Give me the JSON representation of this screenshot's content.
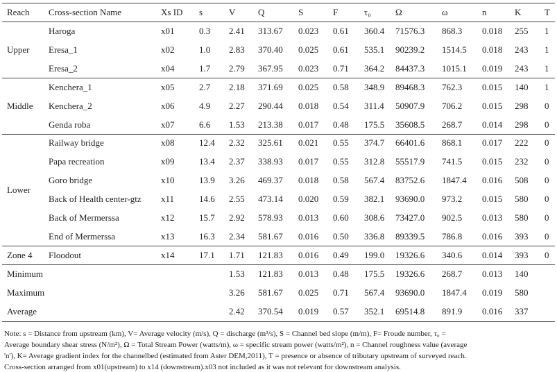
{
  "table": {
    "header": [
      "Reach",
      "Cross-section Name",
      "Xs ID",
      "s",
      "V",
      "Q",
      "S",
      "F",
      "τ₀",
      "Ω",
      "ω",
      "n",
      "K",
      "T"
    ],
    "groups": [
      {
        "reach": "Upper",
        "rows": [
          [
            "Haroga",
            "x01",
            "0.3",
            "2.41",
            "313.67",
            "0.023",
            "0.61",
            "360.4",
            "71576.3",
            "868.3",
            "0.018",
            "255",
            "1"
          ],
          [
            "Eresa_1",
            "x02",
            "1.0",
            "2.83",
            "370.40",
            "0.025",
            "0.61",
            "535.1",
            "90239.2",
            "1514.5",
            "0.018",
            "243",
            "1"
          ],
          [
            "Eresa_2",
            "x04",
            "1.7",
            "2.79",
            "367.95",
            "0.023",
            "0.71",
            "364.2",
            "84437.3",
            "1015.1",
            "0.019",
            "243",
            "1"
          ]
        ]
      },
      {
        "reach": "Middle",
        "rows": [
          [
            "Kenchera_1",
            "x05",
            "2.7",
            "2.18",
            "371.69",
            "0.025",
            "0.58",
            "348.9",
            "89468.3",
            "762.3",
            "0.015",
            "140",
            "1"
          ],
          [
            "Kenchera_2",
            "x06",
            "4.9",
            "2.27",
            "290.44",
            "0.018",
            "0.54",
            "311.4",
            "50907.9",
            "706.2",
            "0.015",
            "298",
            "0"
          ],
          [
            "Genda roba",
            "x07",
            "6.6",
            "1.53",
            "213.38",
            "0.017",
            "0.48",
            "175.5",
            "35608.5",
            "268.7",
            "0.014",
            "298",
            "0"
          ]
        ]
      },
      {
        "reach": "Lower",
        "rows": [
          [
            "Railway bridge",
            "x08",
            "12.4",
            "2.32",
            "325.61",
            "0.021",
            "0.55",
            "374.7",
            "66401.6",
            "868.1",
            "0.017",
            "222",
            "0"
          ],
          [
            "Papa recreation",
            "x09",
            "13.4",
            "2.37",
            "338.93",
            "0.017",
            "0.55",
            "312.8",
            "55517.9",
            "741.5",
            "0.015",
            "232",
            "0"
          ],
          [
            "Goro bridge",
            "x10",
            "13.9",
            "3.26",
            "469.37",
            "0.018",
            "0.58",
            "567.4",
            "83752.6",
            "1847.4",
            "0.016",
            "508",
            "0"
          ],
          [
            "Back of Health center-gtz",
            "x11",
            "14.6",
            "2.55",
            "473.14",
            "0.020",
            "0.59",
            "382.1",
            "93690.0",
            "973.2",
            "0.015",
            "580",
            "0"
          ],
          [
            "Back of Mermerssa",
            "x12",
            "15.7",
            "2.92",
            "578.93",
            "0.013",
            "0.60",
            "308.6",
            "73427.0",
            "902.5",
            "0.013",
            "580",
            "0"
          ],
          [
            "End of Mermerssa",
            "x13",
            "16.3",
            "2.34",
            "581.67",
            "0.016",
            "0.50",
            "336.8",
            "89339.5",
            "786.8",
            "0.016",
            "393",
            "0"
          ]
        ]
      },
      {
        "reach": "Zone 4",
        "rows": [
          [
            "Floodout",
            "x14",
            "17.1",
            "1.71",
            "121.83",
            "0.016",
            "0.49",
            "199.0",
            "19326.6",
            "340.6",
            "0.014",
            "393",
            "0"
          ]
        ]
      }
    ],
    "summary": [
      {
        "label": "Minimum",
        "values": [
          "1.53",
          "121.83",
          "0.013",
          "0.48",
          "175.5",
          "19326.6",
          "268.7",
          "0.013",
          "140"
        ]
      },
      {
        "label": "Maximum",
        "values": [
          "3.26",
          "581.67",
          "0.025",
          "0.71",
          "567.4",
          "93690.0",
          "1847.4",
          "0.019",
          "580"
        ]
      },
      {
        "label": "Average",
        "values": [
          "2.42",
          "370.54",
          "0.019",
          "0.57",
          "352.1",
          "69514.8",
          "891.9",
          "0.016",
          "337"
        ]
      }
    ],
    "note": [
      "Note: s = Distance from upstream (km), V= Average velocity (m/s), Q = discharge (m³/s), S = Channel bed slope (m/m), F= Froude number, τ₀ =",
      "Average boundary shear stress (N/m²), Ω = Total Stream Power (watts/m), ω = specific stream power (watts/m²), n = Channel roughness value (average",
      "'n'), K= Average gradient index for the channelbed (estimated from Aster DEM,2011), T = presence or absence of   tributary upstream of surveyed reach.",
      "Cross-section arranged from x01(upstream) to x14 (downstream).x03 not included as it was not relevant for downstream analysis."
    ]
  }
}
